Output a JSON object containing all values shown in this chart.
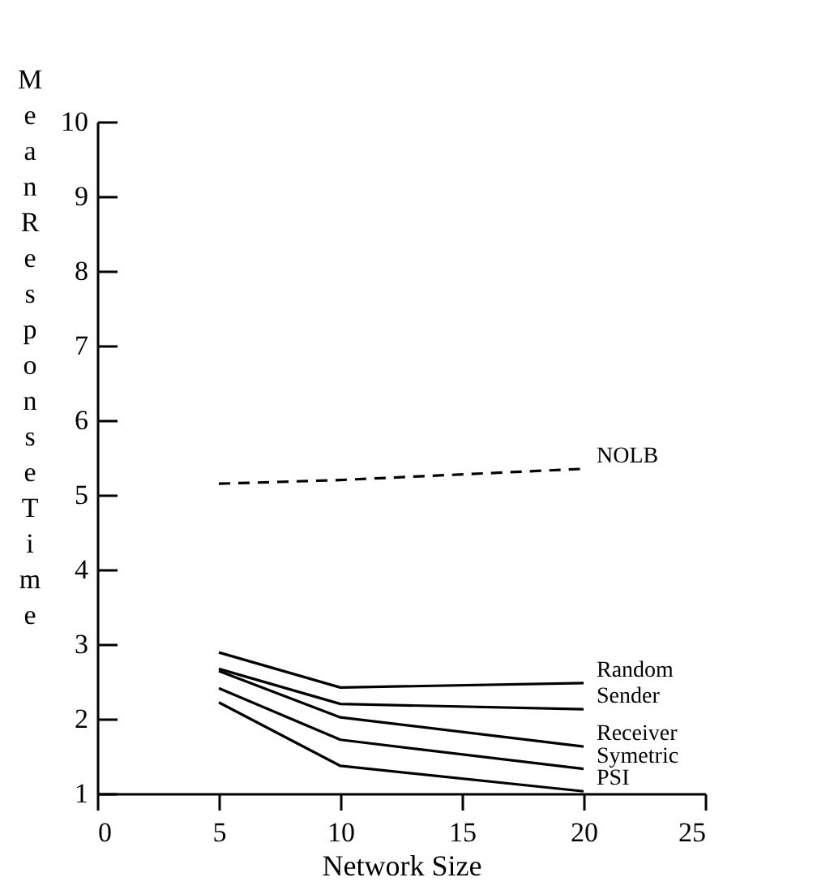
{
  "chart_data": {
    "type": "line",
    "xlabel": "Network Size",
    "ylabel": "Mean Response Time",
    "x": [
      5,
      10,
      20
    ],
    "series": [
      {
        "name": "NOLB",
        "color": "#000000",
        "line_style": "dashed",
        "values": [
          5.15,
          5.2,
          5.35
        ]
      },
      {
        "name": "Random",
        "color": "#000000",
        "line_style": "solid",
        "values": [
          2.89,
          2.42,
          2.48
        ]
      },
      {
        "name": "Sender",
        "color": "#000000",
        "line_style": "solid",
        "values": [
          2.67,
          2.2,
          2.13
        ]
      },
      {
        "name": "Receiver",
        "color": "#000000",
        "line_style": "solid",
        "values": [
          2.64,
          2.02,
          1.63
        ]
      },
      {
        "name": "Symetric",
        "color": "#000000",
        "line_style": "solid",
        "values": [
          2.41,
          1.72,
          1.33
        ]
      },
      {
        "name": "PSI",
        "color": "#000000",
        "line_style": "solid",
        "values": [
          2.22,
          1.37,
          1.03
        ]
      }
    ],
    "xlim": [
      0,
      25
    ],
    "xticks": [
      0,
      5,
      10,
      15,
      20,
      25
    ],
    "ylim": [
      1,
      10
    ],
    "yticks": [
      1,
      2,
      3,
      4,
      5,
      6,
      7,
      8,
      9,
      10
    ],
    "grid": false,
    "legend": false,
    "marker": "none"
  }
}
